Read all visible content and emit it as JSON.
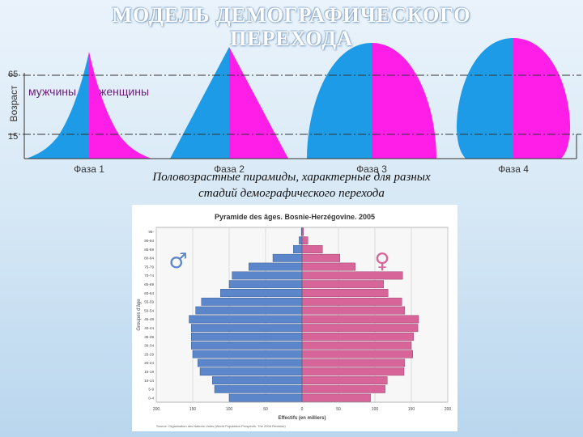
{
  "title": {
    "line1": "МОДЕЛЬ ДЕМОГРАФИЧЕСКОГО",
    "line2": "ПЕРЕХОДА"
  },
  "phase_diagram": {
    "y_axis_label": "Возраст",
    "age_marks": [
      "65",
      "15"
    ],
    "male_label": "мужчины",
    "female_label": "женщины",
    "phases": [
      "Фаза 1",
      "Фаза 2",
      "Фаза 3",
      "Фаза 4"
    ],
    "male_color": "#1e9be6",
    "female_color": "#ff1ee8"
  },
  "caption": {
    "line1": "Половозрастные пирамиды, характерные для разных",
    "line2": "стадий демографического перехода"
  },
  "chart_data": {
    "type": "bar",
    "title": "Pyramide des âges. Bosnie-Herzégovine. 2005",
    "ylabel": "Groupes d'âge",
    "xlabel": "Effectifs (en milliers)",
    "categories": [
      "0-4",
      "5-9",
      "10-14",
      "15-19",
      "20-24",
      "25-29",
      "30-34",
      "35-39",
      "40-44",
      "45-49",
      "50-54",
      "55-59",
      "60-64",
      "65-69",
      "70-74",
      "75-79",
      "80-84",
      "85-89",
      "90-94",
      "95-"
    ],
    "series": [
      {
        "symbol": "♂",
        "color": "#5b86c9",
        "values": [
          100,
          120,
          123,
          140,
          143,
          150,
          152,
          152,
          152,
          155,
          146,
          138,
          112,
          100,
          96,
          73,
          40,
          12,
          4,
          1
        ]
      },
      {
        "symbol": "♀",
        "color": "#d8659a",
        "values": [
          94,
          114,
          117,
          140,
          141,
          152,
          150,
          153,
          159,
          160,
          141,
          137,
          118,
          112,
          138,
          73,
          52,
          28,
          8,
          2
        ]
      }
    ],
    "x_ticks": [
      "200",
      "150",
      "100",
      "50",
      "0",
      "50",
      "100",
      "150",
      "200"
    ],
    "xlim": [
      -200,
      200
    ],
    "grid": true,
    "source": "Source: Organisation des Nations Unies (World Population Prospects. The 2006 Revision)"
  }
}
